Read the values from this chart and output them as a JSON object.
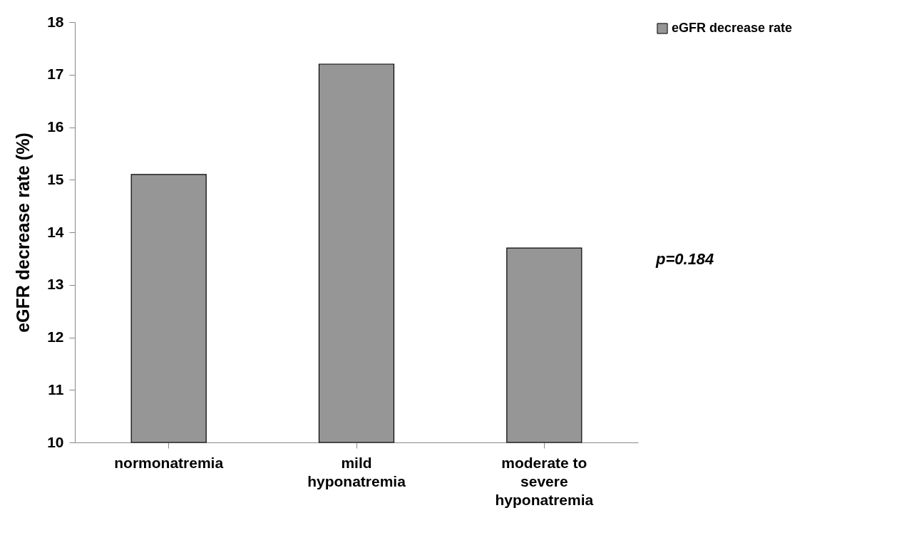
{
  "chart_data": {
    "type": "bar",
    "categories": [
      "normonatremia",
      "mild hyponatremia",
      "moderate to severe hyponatremia"
    ],
    "series": [
      {
        "name": "eGFR decrease rate",
        "color": "#969696",
        "values": [
          15.1,
          17.2,
          13.7
        ]
      }
    ],
    "ylabel": "eGFR decrease rate (%)",
    "ylim": [
      10,
      18
    ],
    "yticks": [
      10,
      11,
      12,
      13,
      14,
      15,
      16,
      17,
      18
    ],
    "grid": false,
    "legend": "right",
    "annotations": [
      "p=0.184"
    ]
  }
}
